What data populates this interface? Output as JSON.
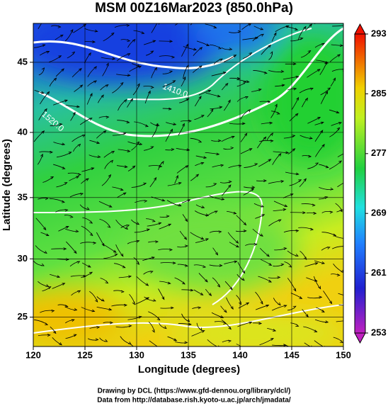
{
  "chart_data": {
    "type": "map",
    "title": "MSM 00Z16Mar2023 (850.0hPa)",
    "xlabel": "Longitude (degrees)",
    "ylabel": "Latitude  (degrees)",
    "xlim": [
      120,
      150
    ],
    "xticks": [
      120,
      125,
      130,
      135,
      140,
      145,
      150
    ],
    "ylim": [
      22.4,
      47.6
    ],
    "yticks": [
      25,
      30,
      35,
      40,
      45
    ],
    "grid": true,
    "colorbar": {
      "lim": [
        253,
        293
      ],
      "ticks": [
        253,
        261,
        269,
        277,
        285,
        293
      ]
    },
    "contour_labels": [
      "1410.0",
      "1520.0"
    ],
    "footer": [
      "Drawing by DCL (https://www.gfd-dennou.org/library/dcl/)",
      "Data from http://database.rish.kyoto-u.ac.jp/arch/jmadata/"
    ]
  }
}
